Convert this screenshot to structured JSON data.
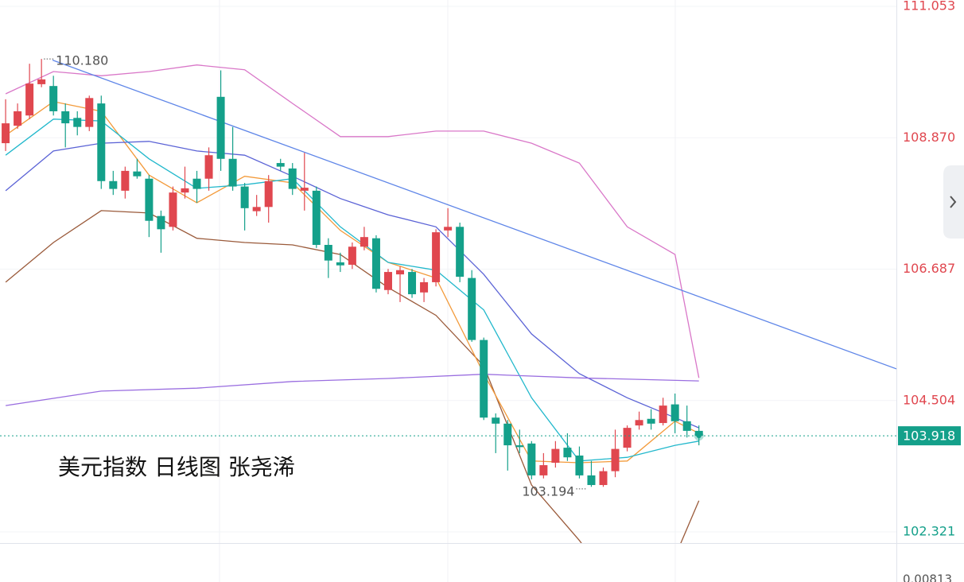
{
  "chart_data": {
    "type": "candlestick",
    "title": "美元指数 日线图 张尧浠",
    "up_color": "#e0474f",
    "down_color": "#14a08a",
    "xlim": [
      -0.47,
      74.52
    ],
    "ylim": [
      102.136,
      111.159
    ],
    "yticks": [
      111.053,
      {
        "value": 108.87,
        "label": "108.870"
      },
      106.687,
      104.504,
      102.321
    ],
    "grid": true,
    "open": [
      108.78,
      109.07,
      109.24,
      109.76,
      109.73,
      109.31,
      109.2,
      109.05,
      109.44,
      108.15,
      107.99,
      108.31,
      108.19,
      107.57,
      107.39,
      107.96,
      108.19,
      108.19,
      109.55,
      108.52,
      108.06,
      107.65,
      107.72,
      108.45,
      108.36,
      107.99,
      107.99,
      107.09,
      106.8,
      106.76,
      107.06,
      107.2,
      106.34,
      106.6,
      106.64,
      106.3,
      106.47,
      107.33,
      107.39,
      106.54,
      105.51,
      104.22,
      104.12,
      103.76,
      103.79,
      103.26,
      103.47,
      103.72,
      103.59,
      103.26,
      103.1,
      103.33,
      103.72,
      104.09,
      104.2,
      104.13,
      104.44,
      104.16,
      104.0
    ],
    "high": [
      109.51,
      109.44,
      110.1,
      110.18,
      109.9,
      109.44,
      109.31,
      109.57,
      109.57,
      108.32,
      108.39,
      108.52,
      108.25,
      107.66,
      108.06,
      108.39,
      108.32,
      108.71,
      109.99,
      109.05,
      108.12,
      107.92,
      108.25,
      108.52,
      108.45,
      108.62,
      108.06,
      107.2,
      106.96,
      107.13,
      107.39,
      107.25,
      106.69,
      106.73,
      106.69,
      106.54,
      107.35,
      107.7,
      107.46,
      106.67,
      105.55,
      104.29,
      104.18,
      104.02,
      103.83,
      103.63,
      103.83,
      103.96,
      103.74,
      103.5,
      103.39,
      104.02,
      104.09,
      104.32,
      104.36,
      104.55,
      104.62,
      104.42,
      104.09
    ],
    "low": [
      108.65,
      109.02,
      109.18,
      109.71,
      109.24,
      108.71,
      108.91,
      108.98,
      108.02,
      107.92,
      107.86,
      108.19,
      107.22,
      106.96,
      107.33,
      107.86,
      107.79,
      107.99,
      108.32,
      107.99,
      107.33,
      107.57,
      107.46,
      108.32,
      107.92,
      107.66,
      107.04,
      106.54,
      106.64,
      106.69,
      107.0,
      106.3,
      106.27,
      106.14,
      106.21,
      106.14,
      106.4,
      107.22,
      106.47,
      105.48,
      104.18,
      103.63,
      103.34,
      103.63,
      103.194,
      103.21,
      103.39,
      103.5,
      103.21,
      103.07,
      103.07,
      103.23,
      103.66,
      104.02,
      104.02,
      104.09,
      103.96,
      103.89,
      103.76
    ],
    "close": [
      109.11,
      109.31,
      109.77,
      109.84,
      109.31,
      109.11,
      109.05,
      109.53,
      108.15,
      108.02,
      108.32,
      108.23,
      107.49,
      107.35,
      107.96,
      108.03,
      108.02,
      108.58,
      108.52,
      108.06,
      107.7,
      107.72,
      108.15,
      108.39,
      108.02,
      108.04,
      107.09,
      106.83,
      106.75,
      107.06,
      107.22,
      106.36,
      106.64,
      106.67,
      106.27,
      106.47,
      107.3,
      107.39,
      106.56,
      105.51,
      104.22,
      104.12,
      103.76,
      103.73,
      103.26,
      103.43,
      103.7,
      103.56,
      103.26,
      103.1,
      103.33,
      103.7,
      104.05,
      104.18,
      104.12,
      104.42,
      104.16,
      104.0,
      103.918
    ],
    "overlays": [
      {
        "color": "#d977c8",
        "x": [
          0,
          4,
          8,
          12,
          16,
          20,
          24,
          28,
          32,
          36,
          40,
          44,
          48,
          52,
          56,
          58
        ],
        "values": [
          109.6,
          109.97,
          109.9,
          109.97,
          110.08,
          110.0,
          109.44,
          108.89,
          108.89,
          108.98,
          108.98,
          108.78,
          108.45,
          107.39,
          106.93,
          104.88
        ]
      },
      {
        "color": "#9a5a3a",
        "x": [
          0,
          4,
          8,
          12,
          16,
          20,
          24,
          28,
          32,
          36,
          40,
          44,
          48,
          52,
          56,
          58
        ],
        "values": [
          106.47,
          107.13,
          107.66,
          107.62,
          107.2,
          107.13,
          107.09,
          106.93,
          106.38,
          105.92,
          105.08,
          103.1,
          102.18,
          101.12,
          101.91,
          102.84
        ]
      },
      {
        "color": "#f39a3a",
        "x": [
          0,
          4,
          8,
          12,
          16,
          20,
          24,
          28,
          32,
          36,
          40,
          44,
          48,
          52,
          56,
          58
        ],
        "values": [
          108.91,
          109.47,
          109.31,
          108.25,
          107.79,
          108.23,
          108.12,
          107.33,
          106.8,
          106.54,
          104.95,
          103.5,
          103.47,
          103.5,
          104.16,
          103.96
        ]
      },
      {
        "color": "#22b8cc",
        "x": [
          0,
          4,
          8,
          12,
          16,
          20,
          24,
          28,
          32,
          36,
          40,
          44,
          48,
          52,
          56,
          58
        ],
        "values": [
          108.58,
          109.18,
          109.15,
          108.52,
          108.03,
          108.09,
          108.19,
          107.39,
          106.8,
          106.67,
          106.01,
          104.55,
          103.5,
          103.56,
          103.76,
          103.83
        ]
      },
      {
        "color": "#5b63d6",
        "x": [
          0,
          4,
          8,
          12,
          16,
          20,
          24,
          28,
          32,
          36,
          40,
          44,
          48,
          52,
          56,
          58
        ],
        "values": [
          107.99,
          108.65,
          108.78,
          108.81,
          108.65,
          108.58,
          108.23,
          107.86,
          107.59,
          107.39,
          106.6,
          105.61,
          104.95,
          104.55,
          104.22,
          104.05
        ]
      },
      {
        "color": "#9a6ee0",
        "x": [
          0,
          8,
          16,
          24,
          32,
          40,
          48,
          58
        ],
        "values": [
          104.42,
          104.66,
          104.71,
          104.82,
          104.87,
          104.94,
          104.88,
          104.83
        ]
      },
      {
        "color": "#5f86e8",
        "x": [
          3.93,
          74.52
        ],
        "values": [
          110.16,
          105.03
        ]
      }
    ],
    "high_label": {
      "index": 3,
      "value": 110.18,
      "label": "110.180"
    },
    "low_label": {
      "index": 44,
      "value": 103.194
    },
    "last_price": 103.918,
    "lower_panel_value": "0.00813"
  }
}
